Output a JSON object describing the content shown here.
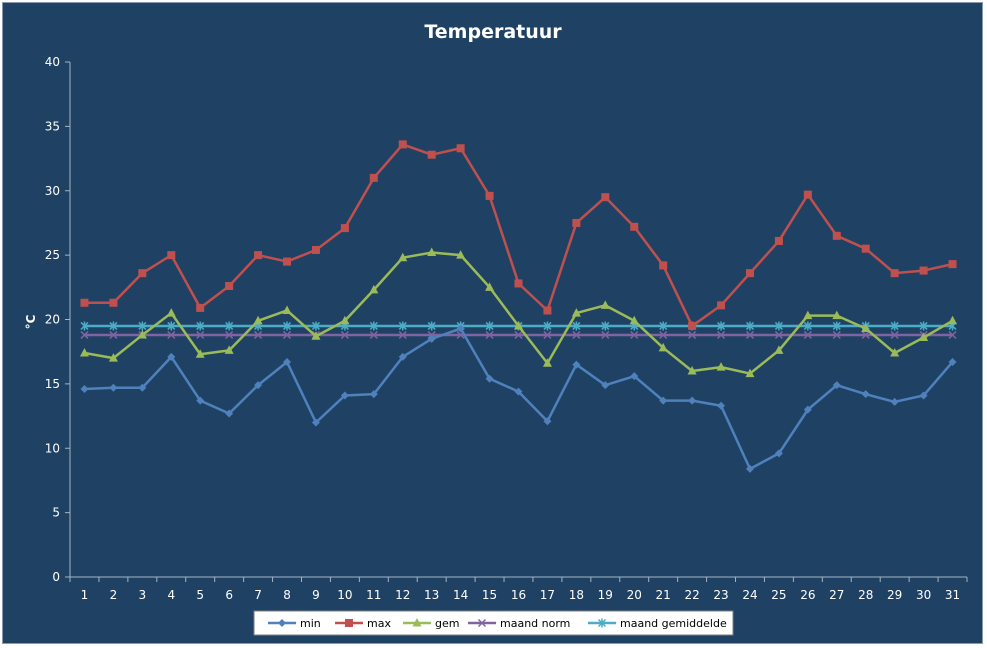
{
  "chart_data": {
    "type": "line",
    "title": "Temperatuur",
    "xlabel": "",
    "ylabel": "°C",
    "ylim": [
      0,
      40
    ],
    "yticks": [
      0,
      5,
      10,
      15,
      20,
      25,
      30,
      35,
      40
    ],
    "categories": [
      "1",
      "2",
      "3",
      "4",
      "5",
      "6",
      "7",
      "8",
      "9",
      "10",
      "11",
      "12",
      "13",
      "14",
      "15",
      "16",
      "17",
      "18",
      "19",
      "20",
      "21",
      "22",
      "23",
      "24",
      "25",
      "26",
      "27",
      "28",
      "29",
      "30",
      "31"
    ],
    "grid": false,
    "legend_position": "bottom",
    "series": [
      {
        "name": "min",
        "color": "#4f81bd",
        "marker": "diamond",
        "values": [
          14.6,
          14.7,
          14.7,
          17.1,
          13.7,
          12.7,
          14.9,
          16.7,
          12.0,
          14.1,
          14.2,
          17.1,
          18.5,
          19.3,
          15.4,
          14.4,
          12.1,
          16.5,
          14.9,
          15.6,
          13.7,
          13.7,
          13.3,
          8.4,
          9.6,
          13.0,
          14.9,
          14.2,
          13.6,
          14.1,
          16.7
        ]
      },
      {
        "name": "max",
        "color": "#c0504d",
        "marker": "square",
        "values": [
          21.3,
          21.3,
          23.6,
          25.0,
          20.9,
          22.6,
          25.0,
          24.5,
          25.4,
          27.1,
          31.0,
          33.6,
          32.8,
          33.3,
          29.6,
          22.8,
          20.7,
          27.5,
          29.5,
          27.2,
          24.2,
          19.5,
          21.1,
          23.6,
          26.1,
          29.7,
          26.5,
          25.5,
          23.6,
          23.8,
          24.3
        ]
      },
      {
        "name": "gem",
        "color": "#9bbb59",
        "marker": "triangle",
        "values": [
          17.4,
          17.0,
          18.8,
          20.5,
          17.3,
          17.6,
          19.9,
          20.7,
          18.7,
          19.9,
          22.3,
          24.8,
          25.2,
          25.0,
          22.5,
          19.5,
          16.6,
          20.5,
          21.1,
          19.9,
          17.8,
          16.0,
          16.3,
          15.8,
          17.6,
          20.3,
          20.3,
          19.3,
          17.4,
          18.6,
          19.9
        ]
      },
      {
        "name": "maand norm",
        "color": "#8064a2",
        "marker": "x",
        "values": [
          18.8,
          18.8,
          18.8,
          18.8,
          18.8,
          18.8,
          18.8,
          18.8,
          18.8,
          18.8,
          18.8,
          18.8,
          18.8,
          18.8,
          18.8,
          18.8,
          18.8,
          18.8,
          18.8,
          18.8,
          18.8,
          18.8,
          18.8,
          18.8,
          18.8,
          18.8,
          18.8,
          18.8,
          18.8,
          18.8,
          18.8
        ]
      },
      {
        "name": "maand gemiddelde",
        "color": "#4bacc6",
        "marker": "star",
        "values": [
          19.5,
          19.5,
          19.5,
          19.5,
          19.5,
          19.5,
          19.5,
          19.5,
          19.5,
          19.5,
          19.5,
          19.5,
          19.5,
          19.5,
          19.5,
          19.5,
          19.5,
          19.5,
          19.5,
          19.5,
          19.5,
          19.5,
          19.5,
          19.5,
          19.5,
          19.5,
          19.5,
          19.5,
          19.5,
          19.5,
          19.5
        ]
      }
    ]
  }
}
